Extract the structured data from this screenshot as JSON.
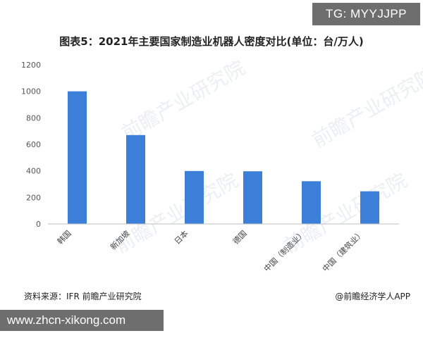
{
  "badge": {
    "text": "TG: MYYJJPP"
  },
  "chart_data": {
    "type": "bar",
    "title": "图表5：2021年主要国家制造业机器人密度对比(单位：台/万人)",
    "categories": [
      "韩国",
      "新加坡",
      "日本",
      "德国",
      "中国（制造业）",
      "中国（建筑业）"
    ],
    "values": [
      1000,
      670,
      399,
      397,
      322,
      246
    ],
    "ylim": [
      0,
      1200
    ],
    "yticks": [
      0,
      200,
      400,
      600,
      800,
      1000,
      1200
    ],
    "xlabel": "",
    "ylabel": "",
    "bar_color": "#3c7fd9",
    "grid": false,
    "legend": "none"
  },
  "watermark": {
    "text": "前瞻产业研究院"
  },
  "footer": {
    "source": "资料来源：IFR 前瞻产业研究院",
    "credit": "@前瞻经济学人APP"
  },
  "site_url": "www.zhcn-xikong.com"
}
